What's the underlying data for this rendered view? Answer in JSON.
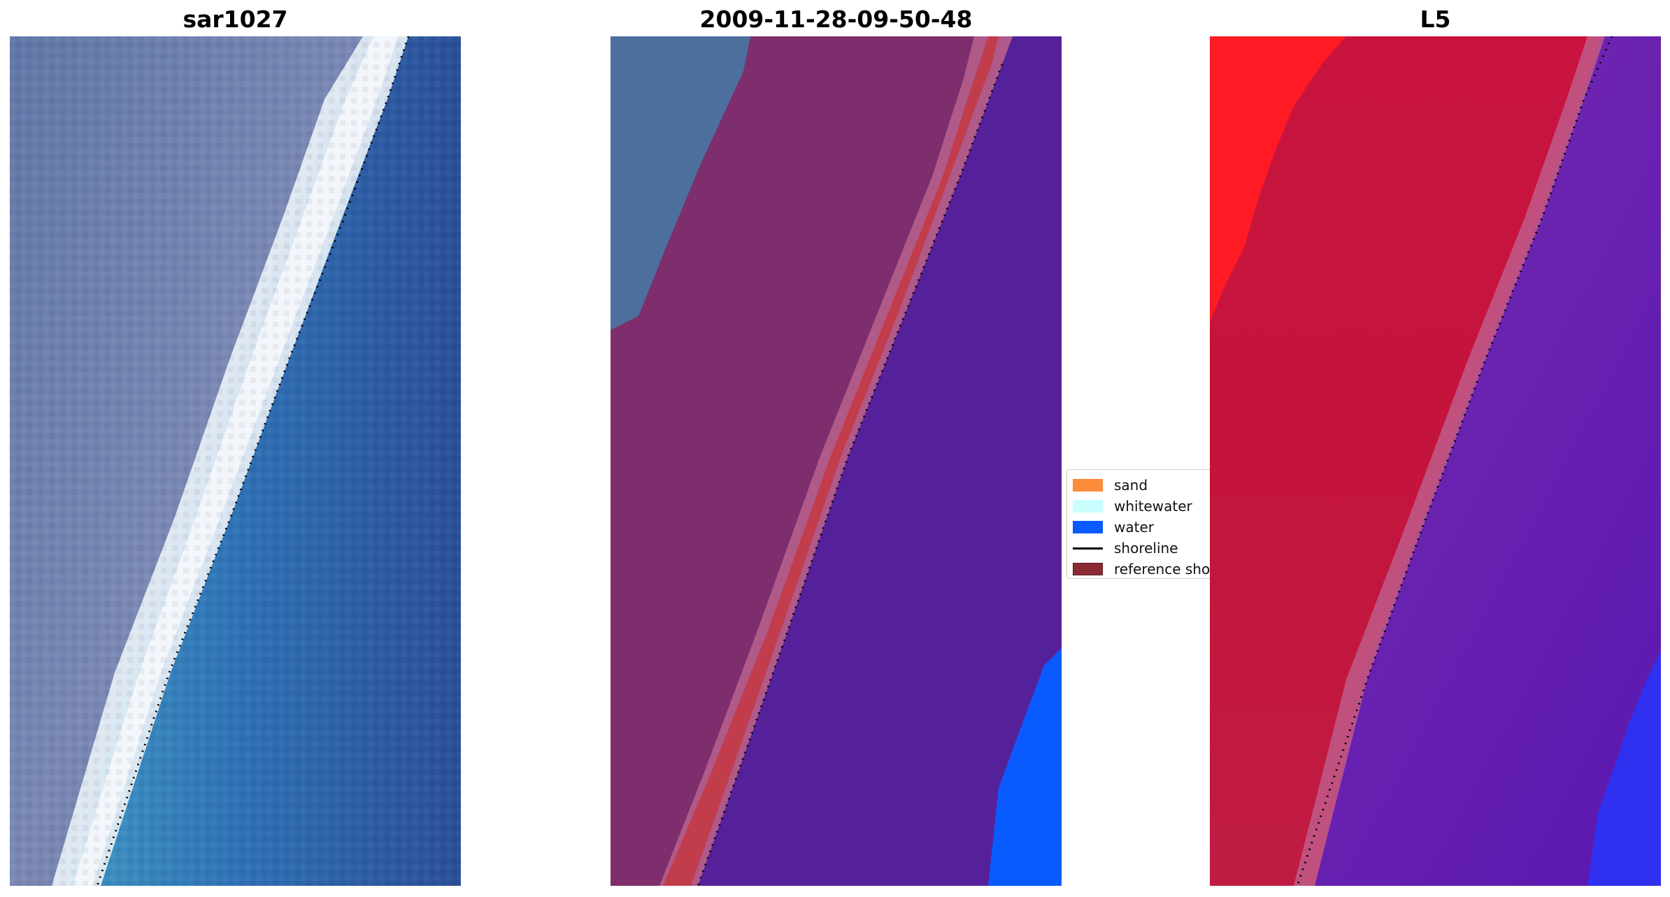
{
  "panels": [
    {
      "title": "sar1027",
      "kind": "rgb"
    },
    {
      "title": "2009-11-28-09-50-48",
      "kind": "classified"
    },
    {
      "title": "L5",
      "kind": "false-color"
    }
  ],
  "legend": {
    "items": [
      {
        "label": "sand",
        "color": "#ff8c3a",
        "kind": "patch"
      },
      {
        "label": "whitewater",
        "color": "#c9ffff",
        "kind": "patch"
      },
      {
        "label": "water",
        "color": "#0a5bff",
        "kind": "patch"
      },
      {
        "label": "shoreline",
        "color": "#000000",
        "kind": "line"
      },
      {
        "label": "reference sho",
        "color": "#8b2a35",
        "kind": "patch"
      }
    ]
  },
  "colors": {
    "land_rgb": "#6f7fa6",
    "whitewater_rgb": "#eef3f6",
    "water_rgb": "#2f70b2",
    "land_class": "#7e2e6c",
    "sand_class": "#c23d4c",
    "water_class": "#55219a",
    "ocean_class": "#0a5bff",
    "land_fc": "#c8143e",
    "water_fc": "#6a1cae",
    "shoreline": "#000000"
  }
}
